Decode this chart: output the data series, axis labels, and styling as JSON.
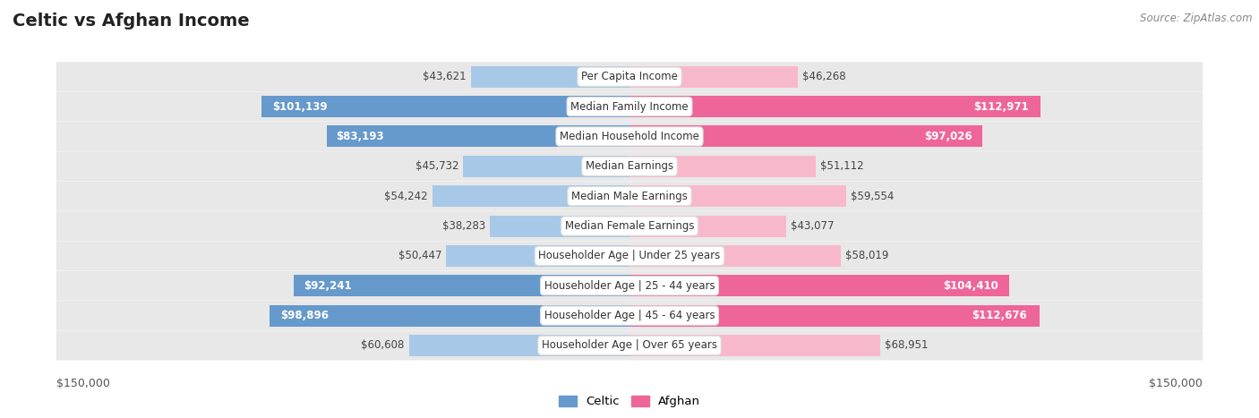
{
  "title": "Celtic vs Afghan Income",
  "source": "Source: ZipAtlas.com",
  "categories": [
    "Per Capita Income",
    "Median Family Income",
    "Median Household Income",
    "Median Earnings",
    "Median Male Earnings",
    "Median Female Earnings",
    "Householder Age | Under 25 years",
    "Householder Age | 25 - 44 years",
    "Householder Age | 45 - 64 years",
    "Householder Age | Over 65 years"
  ],
  "celtic_values": [
    43621,
    101139,
    83193,
    45732,
    54242,
    38283,
    50447,
    92241,
    98896,
    60608
  ],
  "afghan_values": [
    46268,
    112971,
    97026,
    51112,
    59554,
    43077,
    58019,
    104410,
    112676,
    68951
  ],
  "celtic_labels": [
    "$43,621",
    "$101,139",
    "$83,193",
    "$45,732",
    "$54,242",
    "$38,283",
    "$50,447",
    "$92,241",
    "$98,896",
    "$60,608"
  ],
  "afghan_labels": [
    "$46,268",
    "$112,971",
    "$97,026",
    "$51,112",
    "$59,554",
    "$43,077",
    "$58,019",
    "$104,410",
    "$112,676",
    "$68,951"
  ],
  "celtic_solid": [
    false,
    true,
    true,
    false,
    false,
    false,
    false,
    true,
    true,
    false
  ],
  "afghan_solid": [
    false,
    true,
    true,
    false,
    false,
    false,
    false,
    true,
    true,
    false
  ],
  "max_value": 150000,
  "celtic_color_light": "#a8c8e8",
  "celtic_color_solid": "#6699cc",
  "afghan_color_light": "#f8b8cc",
  "afghan_color_solid": "#ee6699",
  "bg_color": "#ffffff",
  "row_bg": "#eeeeee",
  "bar_height": 0.72,
  "label_fontsize": 8.5,
  "title_fontsize": 14,
  "axis_label_fontsize": 9,
  "solid_threshold": 80000
}
